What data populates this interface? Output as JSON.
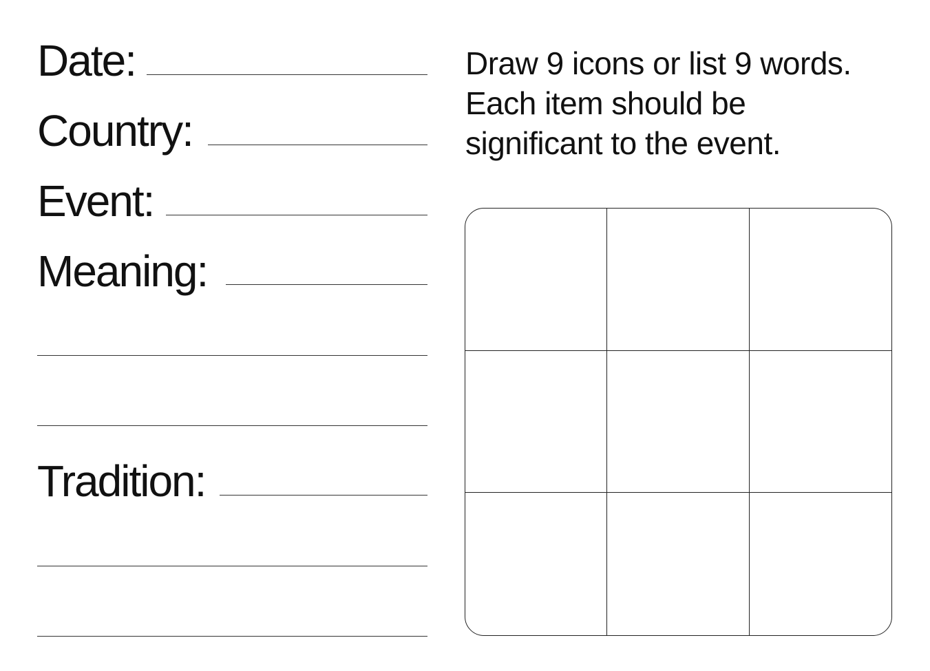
{
  "form": {
    "date_label": "Date:",
    "country_label": "Country:",
    "event_label": "Event:",
    "meaning_label": "Meaning:",
    "tradition_label": "Tradition:"
  },
  "instructions": {
    "line1": "Draw 9 icons or list 9 words.",
    "line2": "Each item should be",
    "line3": "significant to the event."
  },
  "grid": {
    "rows": 3,
    "columns": 3
  }
}
